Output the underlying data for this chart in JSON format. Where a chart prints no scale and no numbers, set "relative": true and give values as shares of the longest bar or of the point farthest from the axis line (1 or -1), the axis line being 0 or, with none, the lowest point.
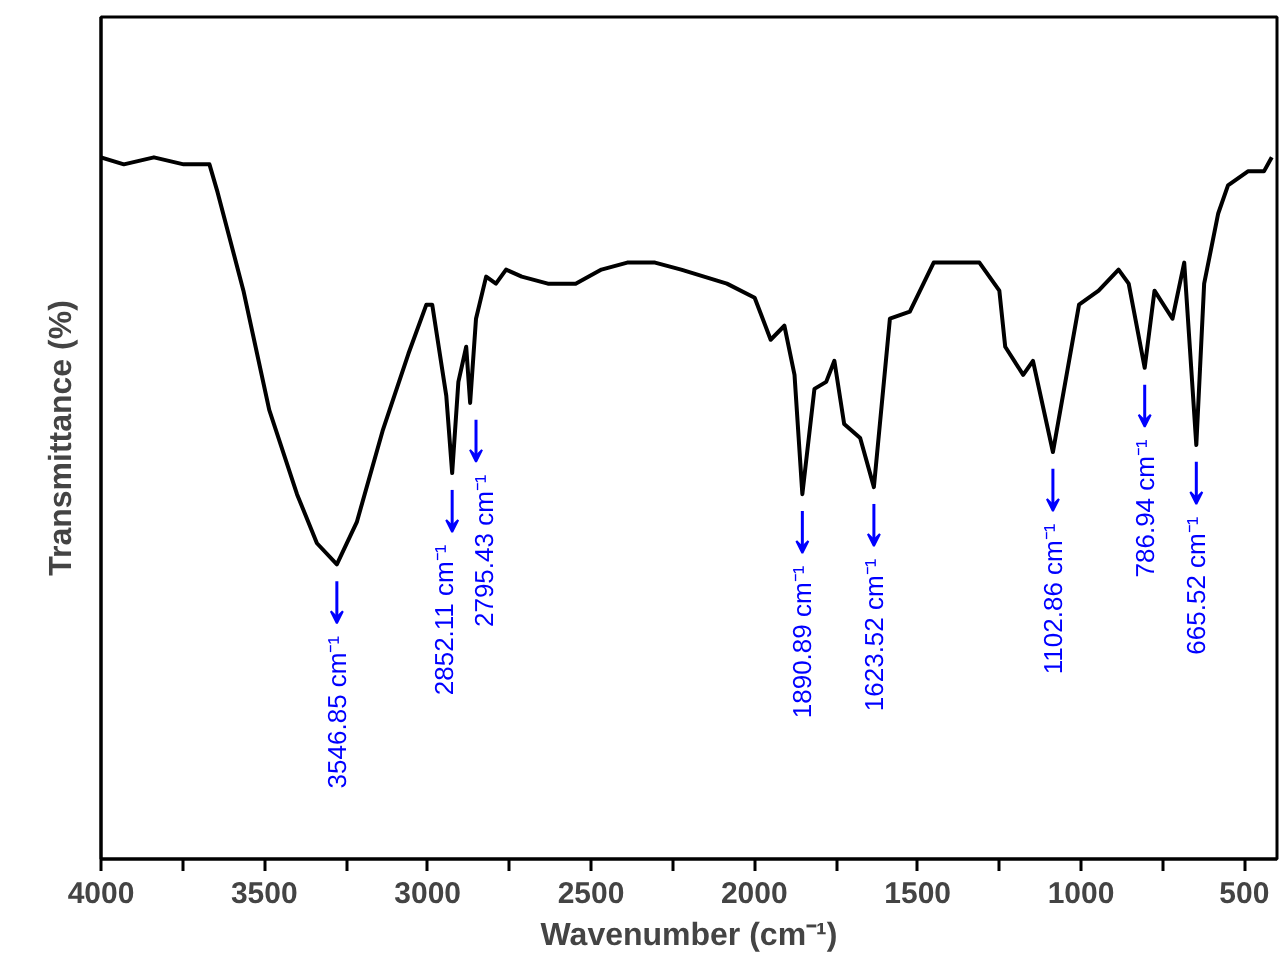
{
  "chart_data": {
    "type": "line",
    "relative": true,
    "xlabel": "Wavenumber (cm⁻¹)",
    "ylabel": "Transmittance (%)",
    "xlim": [
      4000,
      400
    ],
    "xticks": [
      4000,
      {
        "value": 3750,
        "label": null
      },
      3500,
      {
        "value": 3250,
        "label": null
      },
      3000,
      {
        "value": 2750,
        "label": null
      },
      2500,
      {
        "value": 2250,
        "label": null
      },
      2000,
      {
        "value": 1750,
        "label": null
      },
      1500,
      {
        "value": 1250,
        "label": null
      },
      1000,
      {
        "value": 750,
        "label": null
      },
      500
    ],
    "tick_labels": "x",
    "grid": false,
    "marker": "none",
    "line_style": "solid",
    "series": [
      {
        "color": "#000000",
        "x": [
          4000,
          3930,
          3838,
          3747,
          3668,
          3643,
          3564,
          3485,
          3400,
          3339,
          3278,
          3217,
          3138,
          3059,
          3004,
          2986,
          2943,
          2925,
          2906,
          2882,
          2870,
          2852,
          2821,
          2791,
          2760,
          2712,
          2632,
          2547,
          2468,
          2389,
          2304,
          2224,
          2084,
          1999,
          1950,
          1908,
          1877,
          1853,
          1816,
          1780,
          1755,
          1725,
          1676,
          1634,
          1585,
          1524,
          1451,
          1311,
          1250,
          1232,
          1177,
          1147,
          1086,
          1006,
          946,
          885,
          854,
          805,
          775,
          720,
          684,
          647,
          623,
          580,
          550,
          489,
          440,
          416
        ],
        "values": [
          1.0,
          0.99,
          1.0,
          0.99,
          0.99,
          0.95,
          0.81,
          0.64,
          0.52,
          0.45,
          0.42,
          0.48,
          0.61,
          0.72,
          0.79,
          0.79,
          0.66,
          0.55,
          0.68,
          0.73,
          0.65,
          0.77,
          0.83,
          0.82,
          0.84,
          0.83,
          0.82,
          0.82,
          0.84,
          0.85,
          0.85,
          0.84,
          0.82,
          0.8,
          0.74,
          0.76,
          0.69,
          0.52,
          0.67,
          0.68,
          0.71,
          0.62,
          0.6,
          0.53,
          0.77,
          0.78,
          0.85,
          0.85,
          0.81,
          0.73,
          0.69,
          0.71,
          0.58,
          0.79,
          0.81,
          0.84,
          0.82,
          0.7,
          0.81,
          0.77,
          0.85,
          0.59,
          0.82,
          0.92,
          0.96,
          0.98,
          0.98,
          1.0
        ]
      }
    ],
    "annotations": [
      {
        "text": "3546.85 cm⁻¹",
        "x": 3278,
        "y": 0.42
      },
      {
        "text": "2852.11 cm⁻¹",
        "x": 2925,
        "y": 0.55
      },
      {
        "text": "2795.43 cm⁻¹",
        "x": 2852,
        "y": 0.65
      },
      {
        "text": "1890.89 cm⁻¹",
        "x": 1853,
        "y": 0.52
      },
      {
        "text": "1623.52 cm⁻¹",
        "x": 1634,
        "y": 0.53
      },
      {
        "text": "1102.86 cm⁻¹",
        "x": 1086,
        "y": 0.58
      },
      {
        "text": "786.94 cm⁻¹",
        "x": 805,
        "y": 0.7
      },
      {
        "text": "665.52 cm⁻¹",
        "x": 647,
        "y": 0.59
      }
    ]
  }
}
